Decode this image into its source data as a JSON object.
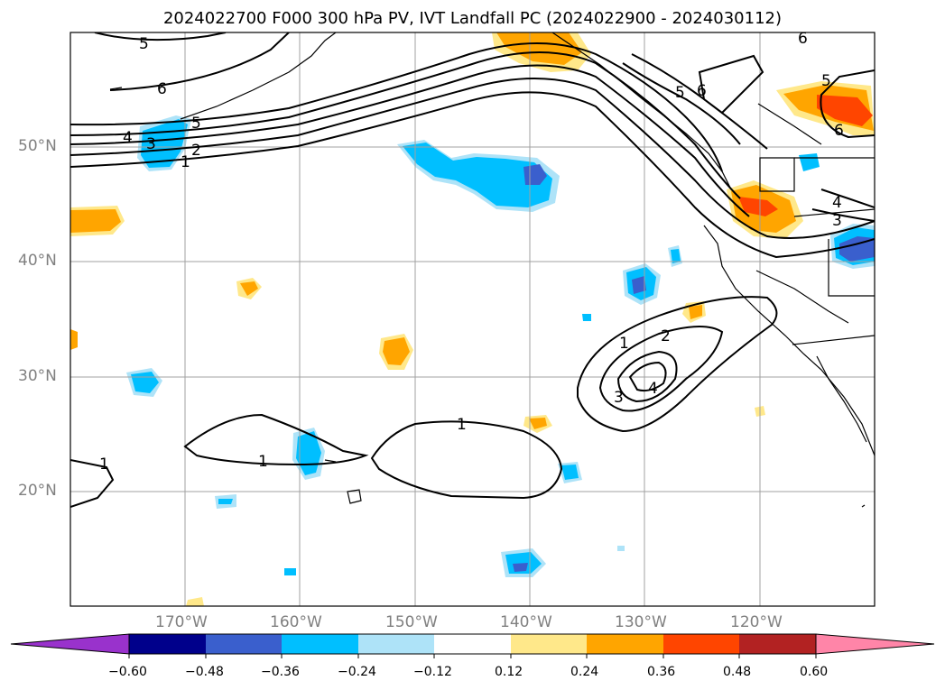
{
  "title": "2024022700 F000 300 hPa PV, IVT Landfall PC (2024022900 - 2024030112)",
  "map": {
    "lon_range": [
      -180,
      -110
    ],
    "lat_range": [
      10,
      60
    ],
    "lat_labels": [
      "50°N",
      "40°N",
      "30°N",
      "20°N"
    ],
    "lon_labels": [
      "170°W",
      "160°W",
      "150°W",
      "140°W",
      "130°W",
      "120°W"
    ],
    "contour_labels": [
      "5",
      "6",
      "5",
      "4",
      "3",
      "2",
      "1",
      "5",
      "6",
      "6",
      "5",
      "6",
      "4",
      "3",
      "1",
      "2",
      "3",
      "4",
      "1",
      "1",
      "1"
    ]
  },
  "colorbar": {
    "ticks": [
      "−0.60",
      "−0.48",
      "−0.36",
      "−0.24",
      "−0.12",
      "0.12",
      "0.24",
      "0.36",
      "0.48",
      "0.60"
    ],
    "colors": [
      "#9932cc",
      "#00008b",
      "#3a5fcd",
      "#00bfff",
      "#aee3f8",
      "#ffffff",
      "#ffe88a",
      "#ffa500",
      "#ff4500",
      "#b22222",
      "#ff85a8"
    ]
  }
}
